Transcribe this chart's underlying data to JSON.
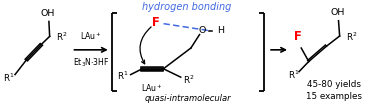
{
  "bg_color": "#ffffff",
  "title_text": "hydrogen bonding",
  "title_color": "#4169e1",
  "title_style": "italic",
  "subtitle_text": "quasi-intramolecular",
  "subtitle_style": "italic",
  "yield_text": "45-80 yields\n15 examples",
  "fig_width": 3.78,
  "fig_height": 1.07,
  "dpi": 100,
  "F_color": "#ff0000",
  "bond_color": "#4169e1",
  "black": "#000000"
}
